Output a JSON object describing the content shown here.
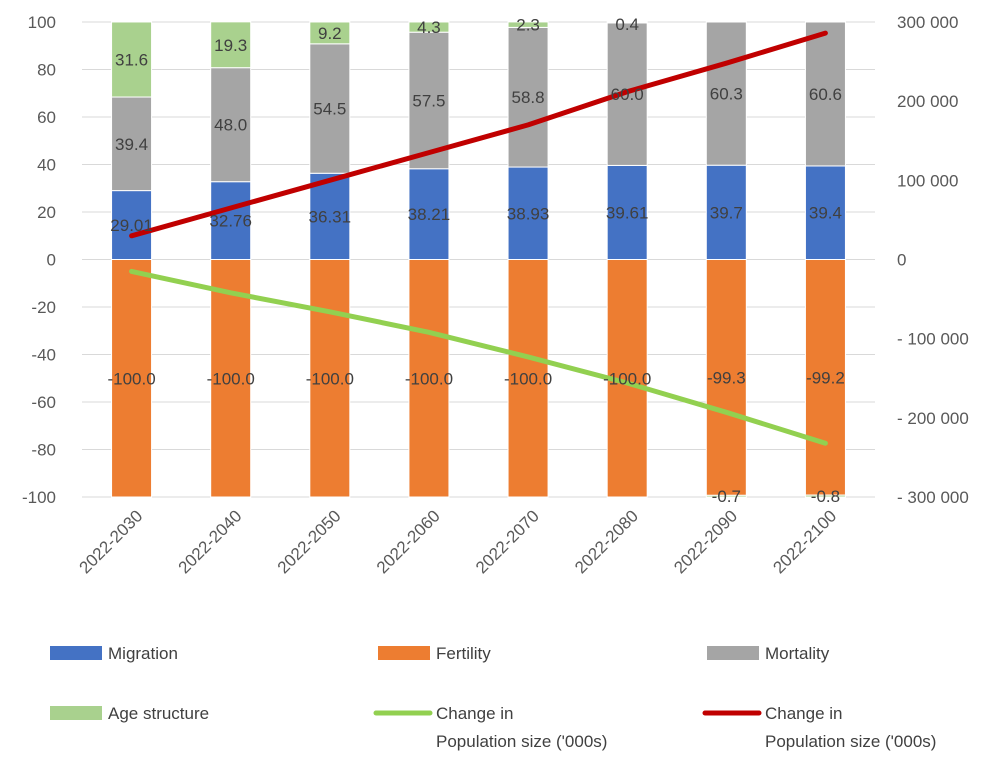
{
  "chart_data": {
    "type": "bar",
    "stacked": true,
    "categories": [
      "2022-2030",
      "2022-2040",
      "2022-2050",
      "2022-2060",
      "2022-2070",
      "2022-2080",
      "2022-2090",
      "2022-2100"
    ],
    "series": [
      {
        "name": "Migration",
        "color": "#4472C4",
        "values": [
          29.01,
          32.76,
          36.31,
          38.21,
          38.93,
          39.61,
          39.7,
          39.4
        ],
        "labels": [
          "29.01",
          "32.76",
          "36.31",
          "38.21",
          "38.93",
          "39.61",
          "39.7",
          "39.4"
        ]
      },
      {
        "name": "Fertility",
        "color": "#ED7D31",
        "values": [
          -100.0,
          -100.0,
          -100.0,
          -100.0,
          -100.0,
          -100.0,
          -99.3,
          -99.2
        ],
        "labels": [
          "-100.0",
          "-100.0",
          "-100.0",
          "-100.0",
          "-100.0",
          "-100.0",
          "-99.3",
          "-99.2"
        ]
      },
      {
        "name": "Mortality",
        "color": "#A5A5A5",
        "values": [
          39.4,
          48.0,
          54.5,
          57.5,
          58.8,
          60.0,
          60.3,
          60.6
        ],
        "labels": [
          "39.4",
          "48.0",
          "54.5",
          "57.5",
          "58.8",
          "60.0",
          "60.3",
          "60.6"
        ]
      },
      {
        "name": "Age structure",
        "color": "#A9D18E",
        "values": [
          31.6,
          19.3,
          9.2,
          4.3,
          2.3,
          0.4,
          -0.7,
          -0.8
        ],
        "labels": [
          "31.6",
          "19.3",
          "9.2",
          "4.3",
          "2.3",
          "0.4",
          "-0.7",
          "-0.8"
        ]
      }
    ],
    "lines": [
      {
        "name": "Change in Population size ('000s)",
        "color": "#92D050",
        "axis": "secondary",
        "values": [
          -15000,
          -42000,
          -66000,
          -92000,
          -123000,
          -156000,
          -193000,
          -232000
        ]
      },
      {
        "name": "Change in Population size ('000s)",
        "color": "#C00000",
        "axis": "secondary",
        "values": [
          30000,
          65000,
          100000,
          135000,
          170000,
          212000,
          248000,
          286000
        ]
      }
    ],
    "y_left": {
      "ylim": [
        -100,
        100
      ],
      "ticks": [
        "-100",
        "-80",
        "-60",
        "-40",
        "-20",
        "0",
        "20",
        "40",
        "60",
        "80",
        "100"
      ]
    },
    "y_right": {
      "ylim": [
        -300000,
        300000
      ],
      "ticks": [
        "- 300 000",
        "- 200 000",
        "- 100 000",
        "0",
        "100 000",
        "200 000",
        "300 000"
      ]
    },
    "grid": true,
    "legend": {
      "position": "bottom",
      "items": [
        {
          "label": "Migration",
          "swatch": "rect",
          "color": "#4472C4"
        },
        {
          "label": "Fertility",
          "swatch": "rect",
          "color": "#ED7D31"
        },
        {
          "label": "Mortality",
          "swatch": "rect",
          "color": "#A5A5A5"
        },
        {
          "label": "Age structure",
          "swatch": "rect",
          "color": "#A9D18E"
        },
        {
          "label": "Change in\nPopulation size ('000s)",
          "swatch": "line",
          "color": "#92D050"
        },
        {
          "label": "Change in\nPopulation size ('000s)",
          "swatch": "line",
          "color": "#C00000"
        }
      ]
    }
  }
}
